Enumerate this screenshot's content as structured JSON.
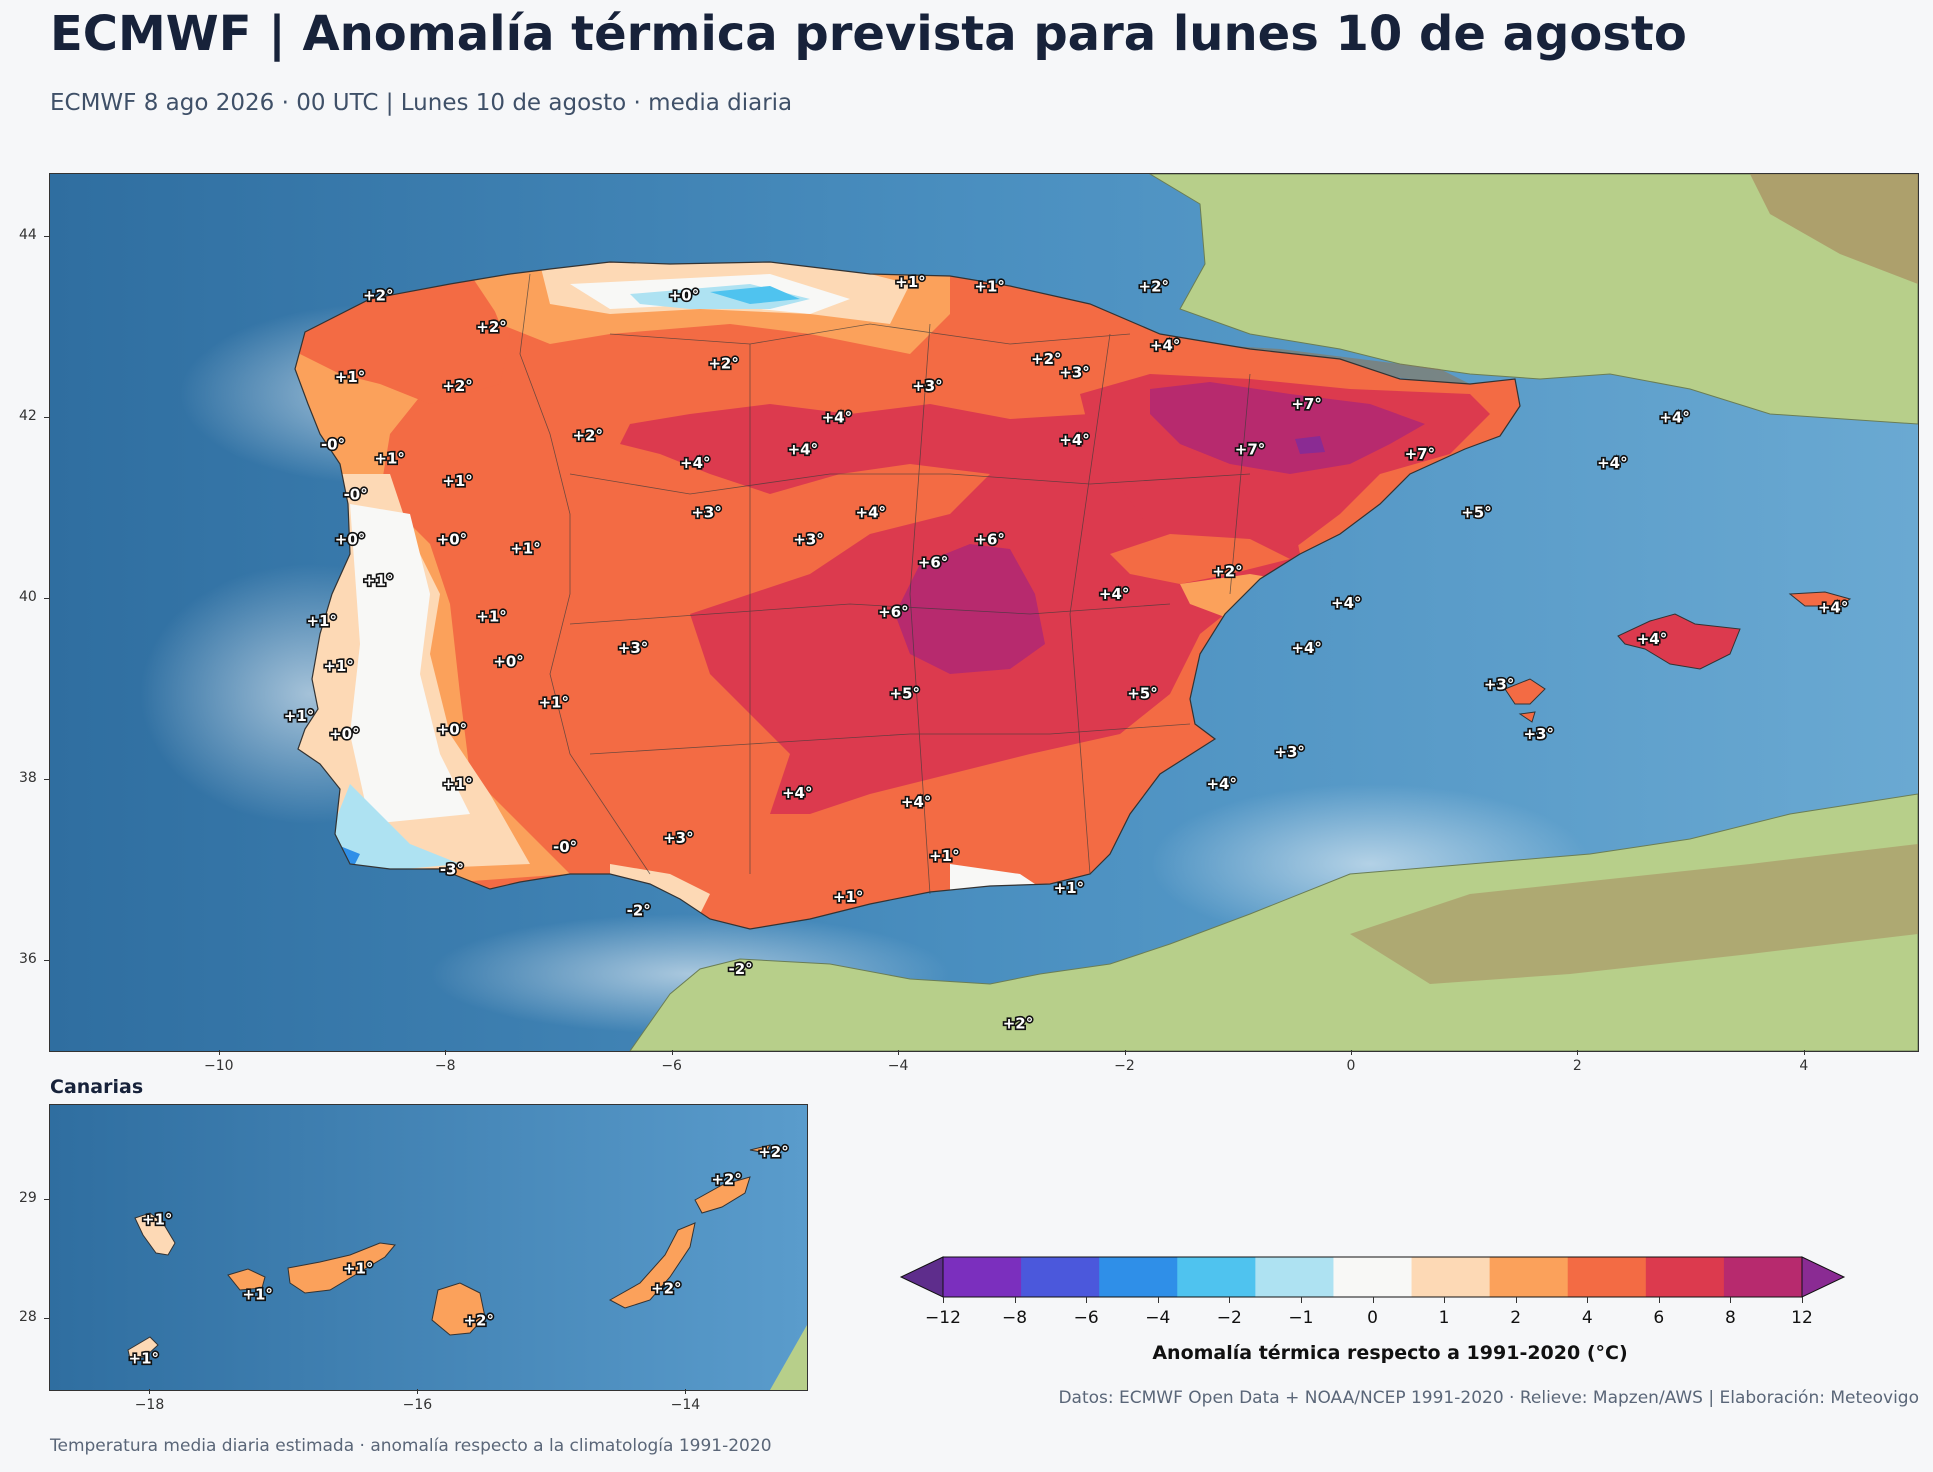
{
  "header": {
    "title": "ECMWF | Anomalía térmica prevista para lunes 10 de agosto",
    "subtitle": "ECMWF 8 ago 2026 · 00 UTC  |  Lunes 10 de agosto · media diaria"
  },
  "main_map": {
    "lon_ticks": [
      "−10",
      "−8",
      "−6",
      "−4",
      "−2",
      "0",
      "2",
      "4"
    ],
    "lat_ticks": [
      "44",
      "42",
      "40",
      "38",
      "36"
    ],
    "labels": [
      {
        "lon": -8.6,
        "lat": 43.35,
        "text": "+2°"
      },
      {
        "lon": -7.6,
        "lat": 43.0,
        "text": "+2°"
      },
      {
        "lon": -5.9,
        "lat": 43.35,
        "text": "+0°"
      },
      {
        "lon": -3.9,
        "lat": 43.5,
        "text": "+1°"
      },
      {
        "lon": -3.2,
        "lat": 43.45,
        "text": "+1°"
      },
      {
        "lon": -1.75,
        "lat": 43.45,
        "text": "+2°"
      },
      {
        "lon": -8.85,
        "lat": 42.45,
        "text": "+1°"
      },
      {
        "lon": -7.9,
        "lat": 42.35,
        "text": "+2°"
      },
      {
        "lon": -5.55,
        "lat": 42.6,
        "text": "+2°"
      },
      {
        "lon": -3.75,
        "lat": 42.35,
        "text": "+3°"
      },
      {
        "lon": -2.7,
        "lat": 42.65,
        "text": "+2°"
      },
      {
        "lon": -2.45,
        "lat": 42.5,
        "text": "+3°"
      },
      {
        "lon": -1.65,
        "lat": 42.8,
        "text": "+4°"
      },
      {
        "lon": -0.4,
        "lat": 42.15,
        "text": "+7°"
      },
      {
        "lon": -9.0,
        "lat": 41.7,
        "text": "-0°"
      },
      {
        "lon": -8.5,
        "lat": 41.55,
        "text": "+1°"
      },
      {
        "lon": -7.9,
        "lat": 41.3,
        "text": "+1°"
      },
      {
        "lon": -8.8,
        "lat": 41.15,
        "text": "-0°"
      },
      {
        "lon": -6.75,
        "lat": 41.8,
        "text": "+2°"
      },
      {
        "lon": -5.8,
        "lat": 41.5,
        "text": "+4°"
      },
      {
        "lon": -4.85,
        "lat": 41.65,
        "text": "+4°"
      },
      {
        "lon": -4.55,
        "lat": 42.0,
        "text": "+4°"
      },
      {
        "lon": -2.45,
        "lat": 41.75,
        "text": "+4°"
      },
      {
        "lon": -0.9,
        "lat": 41.65,
        "text": "+7°"
      },
      {
        "lon": 0.6,
        "lat": 41.6,
        "text": "+7°"
      },
      {
        "lon": 2.3,
        "lat": 41.5,
        "text": "+4°"
      },
      {
        "lon": 2.85,
        "lat": 42.0,
        "text": "+4°"
      },
      {
        "lon": -8.85,
        "lat": 40.65,
        "text": "+0°"
      },
      {
        "lon": -7.95,
        "lat": 40.65,
        "text": "+0°"
      },
      {
        "lon": -7.3,
        "lat": 40.55,
        "text": "+1°"
      },
      {
        "lon": -5.7,
        "lat": 40.95,
        "text": "+3°"
      },
      {
        "lon": -4.25,
        "lat": 40.95,
        "text": "+4°"
      },
      {
        "lon": -4.8,
        "lat": 40.65,
        "text": "+3°"
      },
      {
        "lon": -3.2,
        "lat": 40.65,
        "text": "+6°"
      },
      {
        "lon": -3.7,
        "lat": 40.4,
        "text": "+6°"
      },
      {
        "lon": 1.1,
        "lat": 40.95,
        "text": "+5°"
      },
      {
        "lon": -8.6,
        "lat": 40.2,
        "text": "+1°"
      },
      {
        "lon": -7.6,
        "lat": 39.8,
        "text": "+1°"
      },
      {
        "lon": -9.1,
        "lat": 39.75,
        "text": "+1°"
      },
      {
        "lon": -2.1,
        "lat": 40.05,
        "text": "+4°"
      },
      {
        "lon": -1.1,
        "lat": 40.3,
        "text": "+2°"
      },
      {
        "lon": -4.05,
        "lat": 39.85,
        "text": "+6°"
      },
      {
        "lon": -0.05,
        "lat": 39.95,
        "text": "+4°"
      },
      {
        "lon": 4.25,
        "lat": 39.9,
        "text": "+4°"
      },
      {
        "lon": 2.65,
        "lat": 39.55,
        "text": "+4°"
      },
      {
        "lon": -8.95,
        "lat": 39.25,
        "text": "+1°"
      },
      {
        "lon": -7.45,
        "lat": 39.3,
        "text": "+0°"
      },
      {
        "lon": -6.35,
        "lat": 39.45,
        "text": "+3°"
      },
      {
        "lon": -0.4,
        "lat": 39.45,
        "text": "+4°"
      },
      {
        "lon": -3.95,
        "lat": 38.95,
        "text": "+5°"
      },
      {
        "lon": -1.85,
        "lat": 38.95,
        "text": "+5°"
      },
      {
        "lon": -7.05,
        "lat": 38.85,
        "text": "+1°"
      },
      {
        "lon": 1.3,
        "lat": 39.05,
        "text": "+3°"
      },
      {
        "lon": -9.3,
        "lat": 38.7,
        "text": "+1°"
      },
      {
        "lon": -8.9,
        "lat": 38.5,
        "text": "+0°"
      },
      {
        "lon": -7.95,
        "lat": 38.55,
        "text": "+0°"
      },
      {
        "lon": 1.65,
        "lat": 38.5,
        "text": "+3°"
      },
      {
        "lon": -0.55,
        "lat": 38.3,
        "text": "+3°"
      },
      {
        "lon": -7.9,
        "lat": 37.95,
        "text": "+1°"
      },
      {
        "lon": -4.9,
        "lat": 37.85,
        "text": "+4°"
      },
      {
        "lon": -3.85,
        "lat": 37.75,
        "text": "+4°"
      },
      {
        "lon": -1.15,
        "lat": 37.95,
        "text": "+4°"
      },
      {
        "lon": -5.95,
        "lat": 37.35,
        "text": "+3°"
      },
      {
        "lon": -6.95,
        "lat": 37.25,
        "text": "-0°"
      },
      {
        "lon": -3.6,
        "lat": 37.15,
        "text": "+1°"
      },
      {
        "lon": -7.95,
        "lat": 37.0,
        "text": "-3°"
      },
      {
        "lon": -4.45,
        "lat": 36.7,
        "text": "+1°"
      },
      {
        "lon": -2.5,
        "lat": 36.8,
        "text": "+1°"
      },
      {
        "lon": -6.3,
        "lat": 36.55,
        "text": "-2°"
      },
      {
        "lon": -5.4,
        "lat": 35.9,
        "text": "-2°"
      },
      {
        "lon": -2.95,
        "lat": 35.3,
        "text": "+2°"
      }
    ]
  },
  "inset_map": {
    "title": "Canarias",
    "lon_ticks": [
      "−18",
      "−16",
      "−14"
    ],
    "lat_ticks": [
      "29",
      "28"
    ],
    "labels": [
      {
        "lon": -17.95,
        "lat": 28.83,
        "text": "+1°"
      },
      {
        "lon": -17.2,
        "lat": 28.2,
        "text": "+1°"
      },
      {
        "lon": -16.45,
        "lat": 28.42,
        "text": "+1°"
      },
      {
        "lon": -15.55,
        "lat": 27.98,
        "text": "+2°"
      },
      {
        "lon": -14.15,
        "lat": 28.25,
        "text": "+2°"
      },
      {
        "lon": -13.7,
        "lat": 29.17,
        "text": "+2°"
      },
      {
        "lon": -13.35,
        "lat": 29.4,
        "text": "+2°"
      },
      {
        "lon": -18.05,
        "lat": 27.66,
        "text": "+1°"
      }
    ]
  },
  "colorbar": {
    "label": "Anomalía térmica respecto a 1991-2020 (°C)",
    "ticks": [
      "−12",
      "−8",
      "−6",
      "−4",
      "−2",
      "−1",
      "0",
      "1",
      "2",
      "4",
      "6",
      "8",
      "12"
    ],
    "colors": [
      "#5e2d8c",
      "#7b2fbe",
      "#4b58dc",
      "#2f8fe8",
      "#4fc3ef",
      "#aee2f2",
      "#f8f8f6",
      "#fdd9b5",
      "#fba15b",
      "#f36b44",
      "#dc3a4e",
      "#b72a6e",
      "#8a2b93"
    ]
  },
  "footer": {
    "credits": "Datos: ECMWF Open Data + NOAA/NCEP 1991-2020 · Relieve: Mapzen/AWS  |  Elaboración: Meteovigo",
    "note": "Temperatura media diaria estimada · anomalía respecto a la climatología 1991-2020"
  }
}
